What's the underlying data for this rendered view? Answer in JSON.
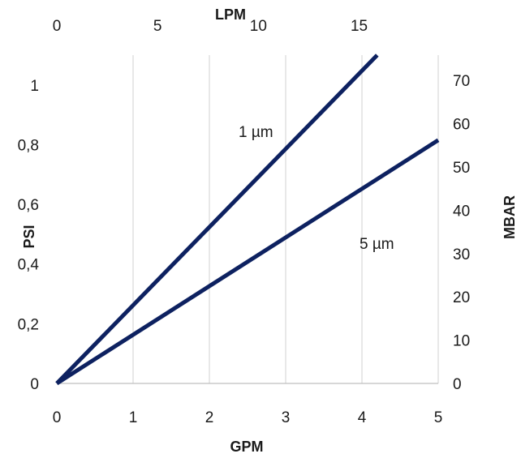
{
  "chart_data": {
    "type": "line",
    "x": {
      "label": "GPM",
      "ticks": [
        0,
        1,
        2,
        3,
        4,
        5
      ],
      "range": [
        0,
        5
      ]
    },
    "x2": {
      "label": "LPM",
      "ticks": [
        0,
        5,
        10,
        15
      ]
    },
    "y": {
      "label": "PSI",
      "ticks": [
        "0",
        "0,2",
        "0,4",
        "0,6",
        "0,8",
        "1"
      ],
      "range": [
        0,
        1.1
      ]
    },
    "y2": {
      "label": "MBAR",
      "ticks": [
        0,
        10,
        20,
        30,
        40,
        50,
        60,
        70
      ]
    },
    "grid": "vertical",
    "series": [
      {
        "name": "1 µm",
        "points": [
          [
            0,
            0
          ],
          [
            4.2,
            1.1
          ]
        ]
      },
      {
        "name": "5 µm",
        "points": [
          [
            0,
            0
          ],
          [
            5,
            0.815
          ]
        ]
      }
    ],
    "colors": {
      "line": "#0d2160",
      "grid": "#d9d9d9",
      "text": "#1a1a1a"
    }
  }
}
